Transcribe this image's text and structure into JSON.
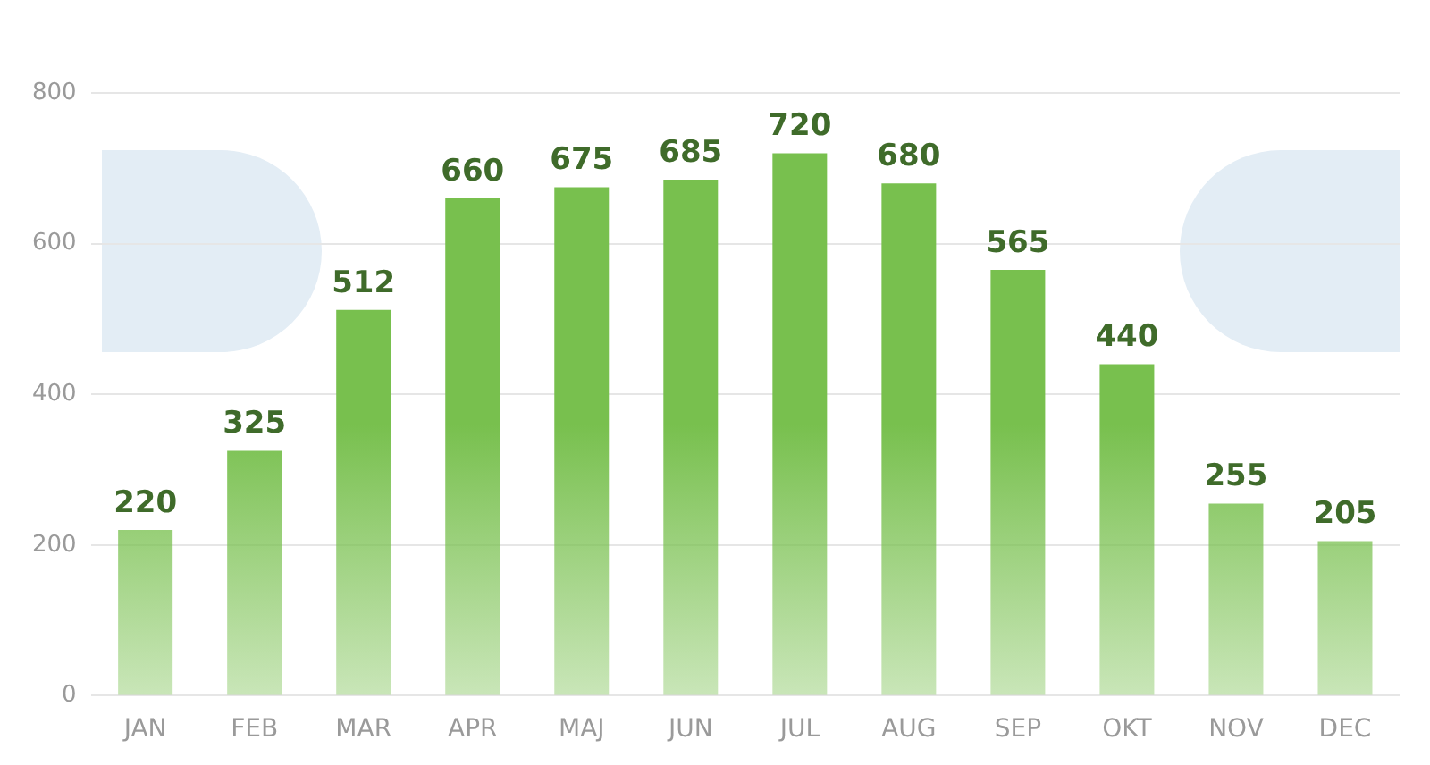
{
  "chart_data": {
    "type": "bar",
    "categories": [
      "JAN",
      "FEB",
      "MAR",
      "APR",
      "MAJ",
      "JUN",
      "JUL",
      "AUG",
      "SEP",
      "OKT",
      "NOV",
      "DEC"
    ],
    "values": [
      220,
      325,
      512,
      660,
      675,
      685,
      720,
      680,
      565,
      440,
      255,
      205
    ],
    "color": "#78c04e",
    "ylim": [
      0,
      800
    ],
    "yticks": [
      0,
      200,
      400,
      600,
      800
    ],
    "grid": "y",
    "data_labels": true,
    "legend": false
  }
}
